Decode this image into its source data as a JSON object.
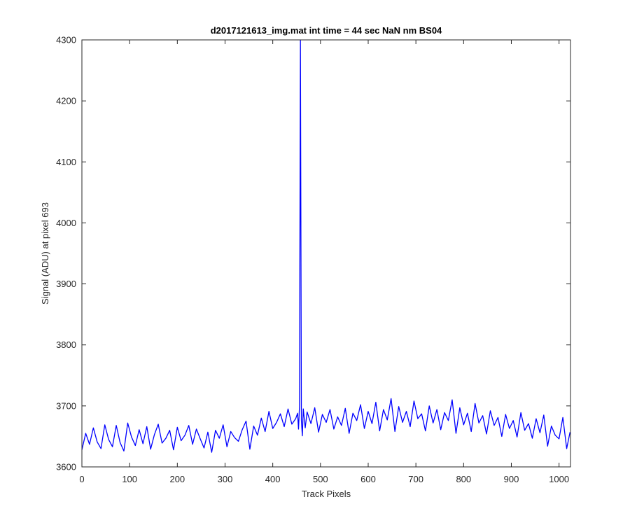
{
  "chart_data": {
    "type": "line",
    "title": "d2017121613_img.mat int time = 44 sec  NaN nm BS04",
    "xlabel": "Track Pixels",
    "ylabel": "Signal (ADU) at pixel 693",
    "xlim": [
      0,
      1024
    ],
    "ylim": [
      3600,
      4300
    ],
    "xticks": [
      0,
      100,
      200,
      300,
      400,
      500,
      600,
      700,
      800,
      900,
      1000
    ],
    "yticks": [
      3600,
      3700,
      3800,
      3900,
      4000,
      4100,
      4200,
      4300
    ],
    "grid": false,
    "legend": "none",
    "series": [
      {
        "color": "#0000ff",
        "x": [
          0,
          8,
          16,
          24,
          32,
          40,
          48,
          56,
          64,
          72,
          80,
          88,
          96,
          104,
          112,
          120,
          128,
          136,
          144,
          152,
          160,
          168,
          176,
          184,
          192,
          200,
          208,
          216,
          224,
          232,
          240,
          248,
          256,
          264,
          272,
          280,
          288,
          296,
          304,
          312,
          320,
          328,
          336,
          344,
          352,
          360,
          368,
          376,
          384,
          392,
          400,
          408,
          416,
          424,
          432,
          440,
          448,
          452,
          454,
          456,
          458,
          460,
          462,
          464,
          468,
          472,
          480,
          488,
          496,
          504,
          512,
          520,
          528,
          536,
          544,
          552,
          560,
          568,
          576,
          584,
          592,
          600,
          608,
          616,
          624,
          632,
          640,
          648,
          656,
          664,
          672,
          680,
          688,
          696,
          704,
          712,
          720,
          728,
          736,
          744,
          752,
          760,
          768,
          776,
          784,
          792,
          800,
          808,
          816,
          824,
          832,
          840,
          848,
          856,
          864,
          872,
          880,
          888,
          896,
          904,
          912,
          920,
          928,
          936,
          944,
          952,
          960,
          968,
          976,
          984,
          992,
          1000,
          1008,
          1016,
          1023
        ],
        "y": [
          3628,
          3655,
          3637,
          3664,
          3641,
          3630,
          3669,
          3645,
          3633,
          3668,
          3640,
          3626,
          3672,
          3649,
          3635,
          3661,
          3638,
          3666,
          3629,
          3653,
          3670,
          3639,
          3647,
          3660,
          3628,
          3665,
          3643,
          3652,
          3668,
          3637,
          3662,
          3646,
          3631,
          3657,
          3624,
          3660,
          3647,
          3669,
          3633,
          3658,
          3648,
          3642,
          3661,
          3675,
          3629,
          3667,
          3652,
          3680,
          3658,
          3691,
          3663,
          3673,
          3687,
          3666,
          3695,
          3670,
          3679,
          3688,
          3662,
          3699,
          4300,
          3676,
          3651,
          3695,
          3664,
          3690,
          3671,
          3697,
          3657,
          3686,
          3673,
          3694,
          3662,
          3682,
          3668,
          3696,
          3655,
          3688,
          3676,
          3702,
          3663,
          3691,
          3671,
          3706,
          3659,
          3694,
          3677,
          3712,
          3658,
          3699,
          3673,
          3691,
          3666,
          3708,
          3679,
          3687,
          3659,
          3700,
          3672,
          3694,
          3661,
          3689,
          3676,
          3710,
          3655,
          3697,
          3669,
          3688,
          3658,
          3704,
          3672,
          3684,
          3654,
          3692,
          3668,
          3681,
          3650,
          3686,
          3663,
          3676,
          3649,
          3689,
          3660,
          3671,
          3647,
          3679,
          3656,
          3685,
          3634,
          3667,
          3652,
          3646,
          3681,
          3630,
          3657
        ]
      }
    ]
  }
}
